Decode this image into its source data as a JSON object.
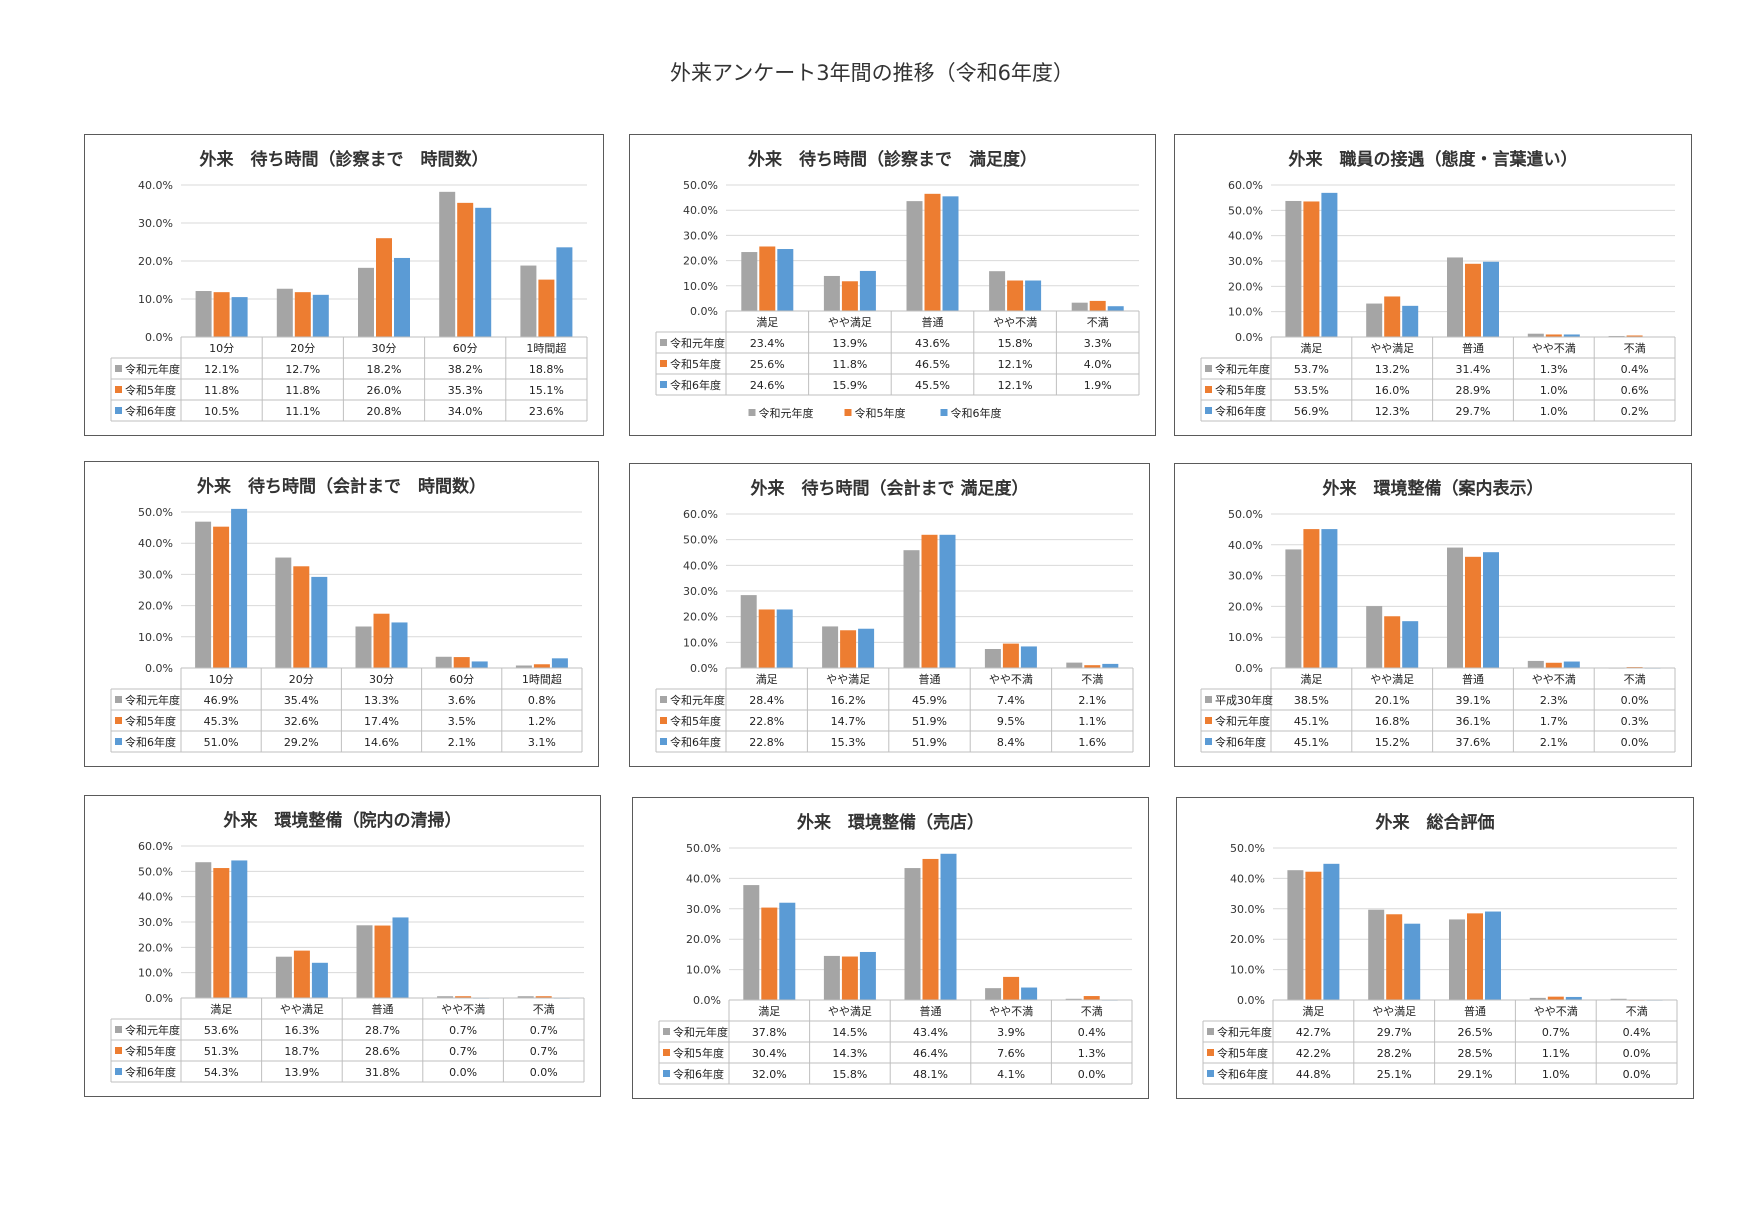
{
  "page_title": "外来アンケート3年間の推移（令和6年度）",
  "colors": {
    "gray": "#A5A5A5",
    "orange": "#ED7D31",
    "blue": "#5B9BD5"
  },
  "chart_data": [
    {
      "type": "bar",
      "title": "外来　待ち時間（診察まで　時間数）",
      "categories": [
        "10分",
        "20分",
        "30分",
        "60分",
        "1時間超"
      ],
      "ylim": [
        0,
        40
      ],
      "yticks": [
        "0.0%",
        "10.0%",
        "20.0%",
        "30.0%",
        "40.0%"
      ],
      "series": [
        {
          "name": "令和元年度",
          "color": "gray",
          "values": [
            12.1,
            12.7,
            18.2,
            38.2,
            18.8
          ],
          "labels": [
            "12.1%",
            "12.7%",
            "18.2%",
            "38.2%",
            "18.8%"
          ]
        },
        {
          "name": "令和5年度",
          "color": "orange",
          "values": [
            11.8,
            11.8,
            26.0,
            35.3,
            15.1
          ],
          "labels": [
            "11.8%",
            "11.8%",
            "26.0%",
            "35.3%",
            "15.1%"
          ]
        },
        {
          "name": "令和6年度",
          "color": "blue",
          "values": [
            10.5,
            11.1,
            20.8,
            34.0,
            23.6
          ],
          "labels": [
            "10.5%",
            "11.1%",
            "20.8%",
            "34.0%",
            "23.6%"
          ]
        }
      ]
    },
    {
      "type": "bar",
      "title": "外来　待ち時間（診察まで　満足度）",
      "categories": [
        "満足",
        "やや満足",
        "普通",
        "やや不満",
        "不満"
      ],
      "ylim": [
        0,
        50
      ],
      "yticks": [
        "0.0%",
        "10.0%",
        "20.0%",
        "30.0%",
        "40.0%",
        "50.0%"
      ],
      "legend": "bottom",
      "series": [
        {
          "name": "令和元年度",
          "color": "gray",
          "values": [
            23.4,
            13.9,
            43.6,
            15.8,
            3.3
          ],
          "labels": [
            "23.4%",
            "13.9%",
            "43.6%",
            "15.8%",
            "3.3%"
          ]
        },
        {
          "name": "令和5年度",
          "color": "orange",
          "values": [
            25.6,
            11.8,
            46.5,
            12.1,
            4.0
          ],
          "labels": [
            "25.6%",
            "11.8%",
            "46.5%",
            "12.1%",
            "4.0%"
          ]
        },
        {
          "name": "令和6年度",
          "color": "blue",
          "values": [
            24.6,
            15.9,
            45.5,
            12.1,
            1.9
          ],
          "labels": [
            "24.6%",
            "15.9%",
            "45.5%",
            "12.1%",
            "1.9%"
          ]
        }
      ]
    },
    {
      "type": "bar",
      "title": "外来　職員の接遇（態度・言葉遣い）",
      "categories": [
        "満足",
        "やや満足",
        "普通",
        "やや不満",
        "不満"
      ],
      "ylim": [
        0,
        60
      ],
      "yticks": [
        "0.0%",
        "10.0%",
        "20.0%",
        "30.0%",
        "40.0%",
        "50.0%",
        "60.0%"
      ],
      "series": [
        {
          "name": "令和元年度",
          "color": "gray",
          "values": [
            53.7,
            13.2,
            31.4,
            1.3,
            0.4
          ],
          "labels": [
            "53.7%",
            "13.2%",
            "31.4%",
            "1.3%",
            "0.4%"
          ]
        },
        {
          "name": "令和5年度",
          "color": "orange",
          "values": [
            53.5,
            16.0,
            28.9,
            1.0,
            0.6
          ],
          "labels": [
            "53.5%",
            "16.0%",
            "28.9%",
            "1.0%",
            "0.6%"
          ]
        },
        {
          "name": "令和6年度",
          "color": "blue",
          "values": [
            56.9,
            12.3,
            29.7,
            1.0,
            0.2
          ],
          "labels": [
            "56.9%",
            "12.3%",
            "29.7%",
            "1.0%",
            "0.2%"
          ]
        }
      ]
    },
    {
      "type": "bar",
      "title": "外来　待ち時間（会計まで　時間数）",
      "categories": [
        "10分",
        "20分",
        "30分",
        "60分",
        "1時間超"
      ],
      "ylim": [
        0,
        50
      ],
      "yticks": [
        "0.0%",
        "10.0%",
        "20.0%",
        "30.0%",
        "40.0%",
        "50.0%"
      ],
      "series": [
        {
          "name": "令和元年度",
          "color": "gray",
          "values": [
            46.9,
            35.4,
            13.3,
            3.6,
            0.8
          ],
          "labels": [
            "46.9%",
            "35.4%",
            "13.3%",
            "3.6%",
            "0.8%"
          ]
        },
        {
          "name": "令和5年度",
          "color": "orange",
          "values": [
            45.3,
            32.6,
            17.4,
            3.5,
            1.2
          ],
          "labels": [
            "45.3%",
            "32.6%",
            "17.4%",
            "3.5%",
            "1.2%"
          ]
        },
        {
          "name": "令和6年度",
          "color": "blue",
          "values": [
            51.0,
            29.2,
            14.6,
            2.1,
            3.1
          ],
          "labels": [
            "51.0%",
            "29.2%",
            "14.6%",
            "2.1%",
            "3.1%"
          ]
        }
      ]
    },
    {
      "type": "bar",
      "title": "外来　待ち時間（会計まで 満足度）",
      "categories": [
        "満足",
        "やや満足",
        "普通",
        "やや不満",
        "不満"
      ],
      "ylim": [
        0,
        60
      ],
      "yticks": [
        "0.0%",
        "10.0%",
        "20.0%",
        "30.0%",
        "40.0%",
        "50.0%",
        "60.0%"
      ],
      "series": [
        {
          "name": "令和元年度",
          "color": "gray",
          "values": [
            28.4,
            16.2,
            45.9,
            7.4,
            2.1
          ],
          "labels": [
            "28.4%",
            "16.2%",
            "45.9%",
            "7.4%",
            "2.1%"
          ]
        },
        {
          "name": "令和5年度",
          "color": "orange",
          "values": [
            22.8,
            14.7,
            51.9,
            9.5,
            1.1
          ],
          "labels": [
            "22.8%",
            "14.7%",
            "51.9%",
            "9.5%",
            "1.1%"
          ]
        },
        {
          "name": "令和6年度",
          "color": "blue",
          "values": [
            22.8,
            15.3,
            51.9,
            8.4,
            1.6
          ],
          "labels": [
            "22.8%",
            "15.3%",
            "51.9%",
            "8.4%",
            "1.6%"
          ]
        }
      ]
    },
    {
      "type": "bar",
      "title": "外来　環境整備（案内表示）",
      "categories": [
        "満足",
        "やや満足",
        "普通",
        "やや不満",
        "不満"
      ],
      "ylim": [
        0,
        50
      ],
      "yticks": [
        "0.0%",
        "10.0%",
        "20.0%",
        "30.0%",
        "40.0%",
        "50.0%"
      ],
      "series": [
        {
          "name": "平成30年度",
          "color": "gray",
          "values": [
            38.5,
            20.1,
            39.1,
            2.3,
            0.0
          ],
          "labels": [
            "38.5%",
            "20.1%",
            "39.1%",
            "2.3%",
            "0.0%"
          ]
        },
        {
          "name": "令和元年度",
          "color": "orange",
          "values": [
            45.1,
            16.8,
            36.1,
            1.7,
            0.3
          ],
          "labels": [
            "45.1%",
            "16.8%",
            "36.1%",
            "1.7%",
            "0.3%"
          ]
        },
        {
          "name": "令和6年度",
          "color": "blue",
          "values": [
            45.1,
            15.2,
            37.6,
            2.1,
            0.0
          ],
          "labels": [
            "45.1%",
            "15.2%",
            "37.6%",
            "2.1%",
            "0.0%"
          ]
        }
      ]
    },
    {
      "type": "bar",
      "title": "外来　環境整備（院内の清掃）",
      "categories": [
        "満足",
        "やや満足",
        "普通",
        "やや不満",
        "不満"
      ],
      "ylim": [
        0,
        60
      ],
      "yticks": [
        "0.0%",
        "10.0%",
        "20.0%",
        "30.0%",
        "40.0%",
        "50.0%",
        "60.0%"
      ],
      "series": [
        {
          "name": "令和元年度",
          "color": "gray",
          "values": [
            53.6,
            16.3,
            28.7,
            0.7,
            0.7
          ],
          "labels": [
            "53.6%",
            "16.3%",
            "28.7%",
            "0.7%",
            "0.7%"
          ]
        },
        {
          "name": "令和5年度",
          "color": "orange",
          "values": [
            51.3,
            18.7,
            28.6,
            0.7,
            0.7
          ],
          "labels": [
            "51.3%",
            "18.7%",
            "28.6%",
            "0.7%",
            "0.7%"
          ]
        },
        {
          "name": "令和6年度",
          "color": "blue",
          "values": [
            54.3,
            13.9,
            31.8,
            0.0,
            0.0
          ],
          "labels": [
            "54.3%",
            "13.9%",
            "31.8%",
            "0.0%",
            "0.0%"
          ]
        }
      ]
    },
    {
      "type": "bar",
      "title": "外来　環境整備（売店）",
      "categories": [
        "満足",
        "やや満足",
        "普通",
        "やや不満",
        "不満"
      ],
      "ylim": [
        0,
        50
      ],
      "yticks": [
        "0.0%",
        "10.0%",
        "20.0%",
        "30.0%",
        "40.0%",
        "50.0%"
      ],
      "series": [
        {
          "name": "令和元年度",
          "color": "gray",
          "values": [
            37.8,
            14.5,
            43.4,
            3.9,
            0.4
          ],
          "labels": [
            "37.8%",
            "14.5%",
            "43.4%",
            "3.9%",
            "0.4%"
          ]
        },
        {
          "name": "令和5年度",
          "color": "orange",
          "values": [
            30.4,
            14.3,
            46.4,
            7.6,
            1.3
          ],
          "labels": [
            "30.4%",
            "14.3%",
            "46.4%",
            "7.6%",
            "1.3%"
          ]
        },
        {
          "name": "令和6年度",
          "color": "blue",
          "values": [
            32.0,
            15.8,
            48.1,
            4.1,
            0.0
          ],
          "labels": [
            "32.0%",
            "15.8%",
            "48.1%",
            "4.1%",
            "0.0%"
          ]
        }
      ]
    },
    {
      "type": "bar",
      "title": "外来　総合評価",
      "categories": [
        "満足",
        "やや満足",
        "普通",
        "やや不満",
        "不満"
      ],
      "ylim": [
        0,
        50
      ],
      "yticks": [
        "0.0%",
        "10.0%",
        "20.0%",
        "30.0%",
        "40.0%",
        "50.0%"
      ],
      "series": [
        {
          "name": "令和元年度",
          "color": "gray",
          "values": [
            42.7,
            29.7,
            26.5,
            0.7,
            0.4
          ],
          "labels": [
            "42.7%",
            "29.7%",
            "26.5%",
            "0.7%",
            "0.4%"
          ]
        },
        {
          "name": "令和5年度",
          "color": "orange",
          "values": [
            42.2,
            28.2,
            28.5,
            1.1,
            0.0
          ],
          "labels": [
            "42.2%",
            "28.2%",
            "28.5%",
            "1.1%",
            "0.0%"
          ]
        },
        {
          "name": "令和6年度",
          "color": "blue",
          "values": [
            44.8,
            25.1,
            29.1,
            1.0,
            0.0
          ],
          "labels": [
            "44.8%",
            "25.1%",
            "29.1%",
            "1.0%",
            "0.0%"
          ]
        }
      ]
    }
  ]
}
